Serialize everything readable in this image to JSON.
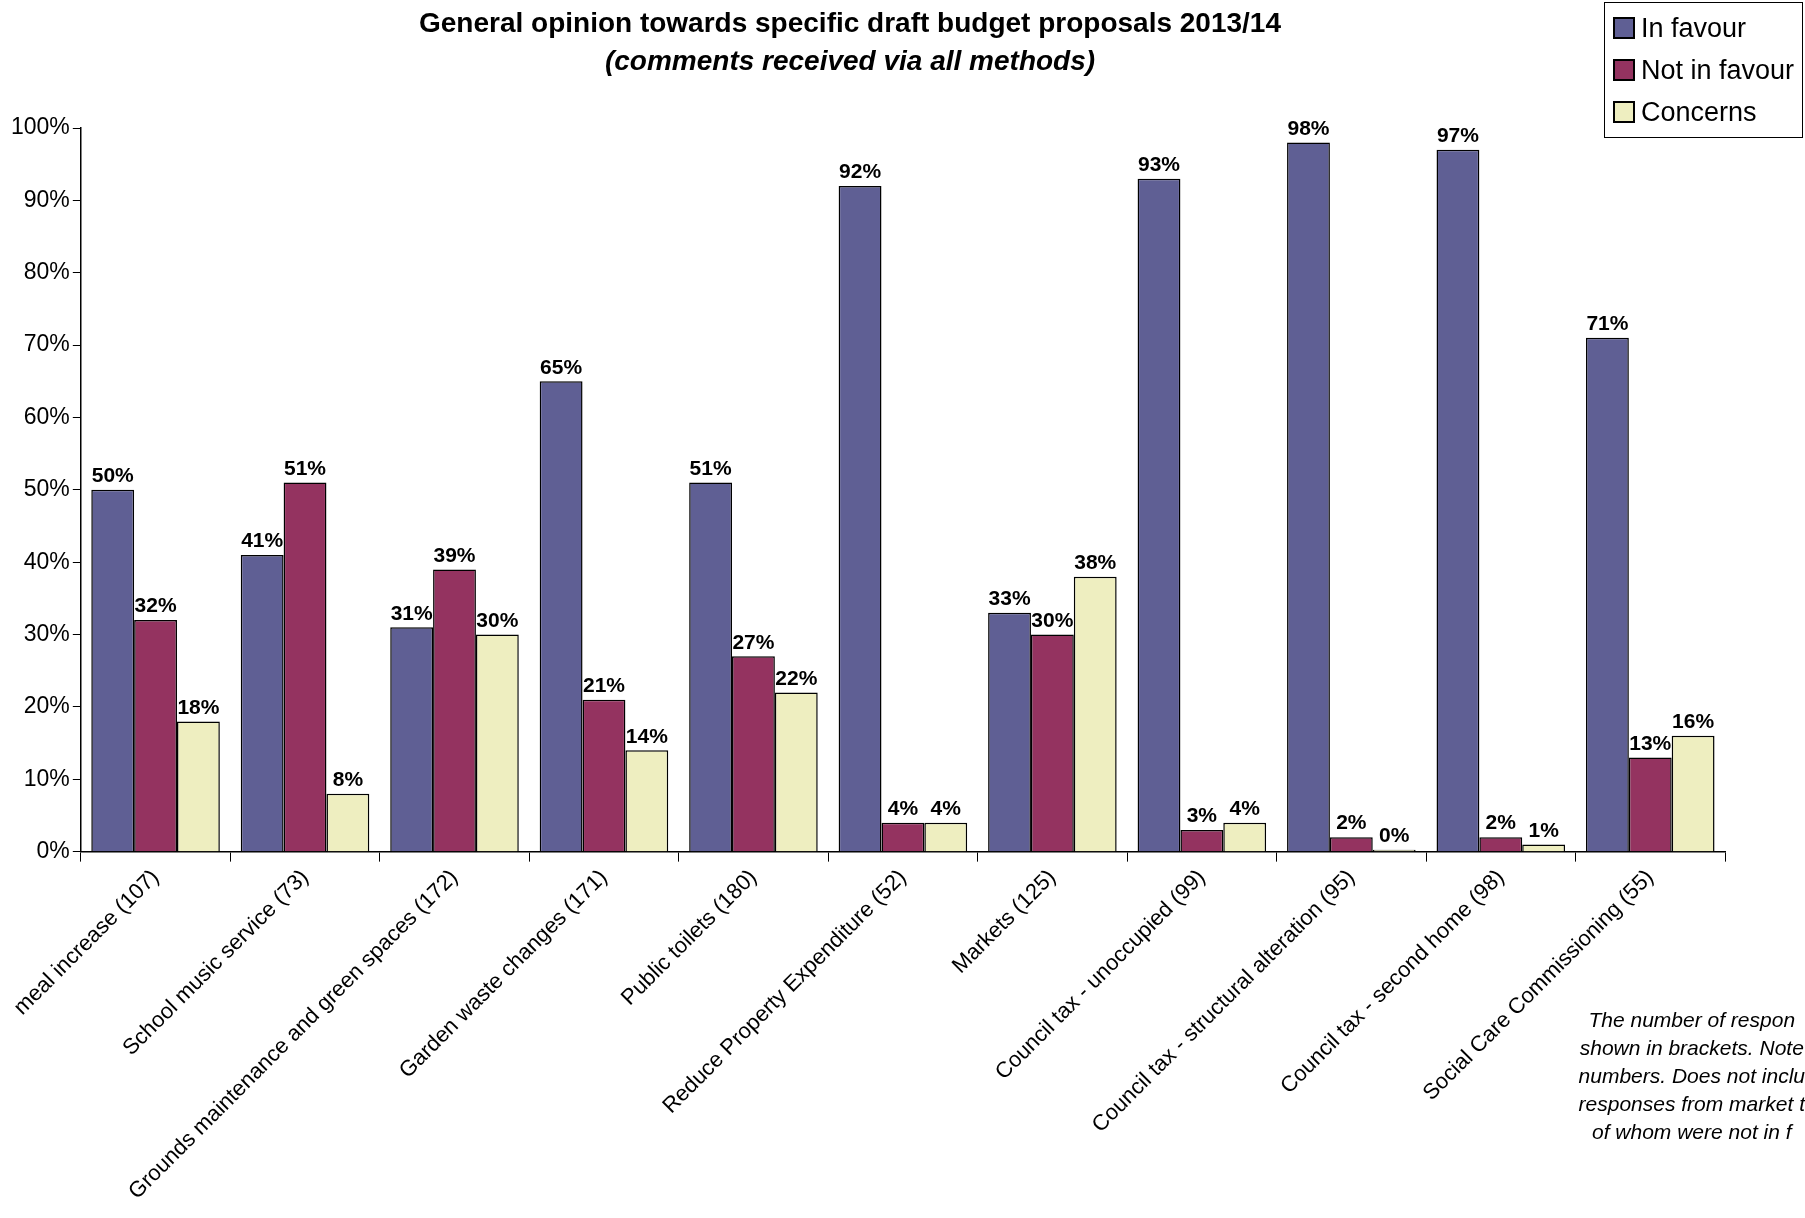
{
  "chart_data": {
    "type": "bar",
    "title": "General opinion towards specific draft budget proposals 2013/14",
    "subtitle": "(comments received via all methods)",
    "categories": [
      "meal increase (107)",
      "School music service (73)",
      "Grounds maintenance and green spaces (172)",
      "Garden waste changes (171)",
      "Public toilets (180)",
      "Reduce Property Expenditure (52)",
      "Markets (125)",
      "Council tax - unoccupied (99)",
      "Council tax - structural alteration (95)",
      "Council tax - second home (98)",
      "Social Care Commissioning (55)"
    ],
    "series": [
      {
        "name": "In favour",
        "color": "#5f5f94",
        "values": [
          50,
          41,
          31,
          65,
          51,
          92,
          33,
          93,
          98,
          97,
          71
        ],
        "value_labels": [
          "50%",
          "41%",
          "31%",
          "65%",
          "51%",
          "92%",
          "33%",
          "93%",
          "98%",
          "97%",
          "71%"
        ]
      },
      {
        "name": "Not in favour",
        "color": "#943360",
        "values": [
          32,
          51,
          39,
          21,
          27,
          4,
          30,
          3,
          2,
          2,
          13
        ],
        "value_labels": [
          "32%",
          "51%",
          "39%",
          "21%",
          "27%",
          "4%",
          "30%",
          "3%",
          "2%",
          "2%",
          "13%"
        ]
      },
      {
        "name": "Concerns",
        "color": "#eeeec0",
        "values": [
          18,
          8,
          30,
          14,
          22,
          4,
          38,
          4,
          0,
          1,
          16
        ],
        "value_labels": [
          "18%",
          "8%",
          "30%",
          "14%",
          "22%",
          "4%",
          "38%",
          "4%",
          "0%",
          "1%",
          "16%"
        ]
      }
    ],
    "ylim": [
      0,
      100
    ],
    "yticks": [
      {
        "value": 0,
        "label": "0%"
      },
      {
        "value": 10,
        "label": "10%"
      },
      {
        "value": 20,
        "label": "20%"
      },
      {
        "value": 30,
        "label": "30%"
      },
      {
        "value": 40,
        "label": "40%"
      },
      {
        "value": 50,
        "label": "50%"
      },
      {
        "value": 60,
        "label": "60%"
      },
      {
        "value": 70,
        "label": "70%"
      },
      {
        "value": 80,
        "label": "80%"
      },
      {
        "value": 90,
        "label": "90%"
      },
      {
        "value": 100,
        "label": "100%"
      }
    ],
    "grid": false,
    "legend": "top right",
    "annotations": [
      "The number of respon\nshown in brackets. Note\nnumbers. Does not inclu\nresponses from market t\nof whom were not in f"
    ]
  }
}
